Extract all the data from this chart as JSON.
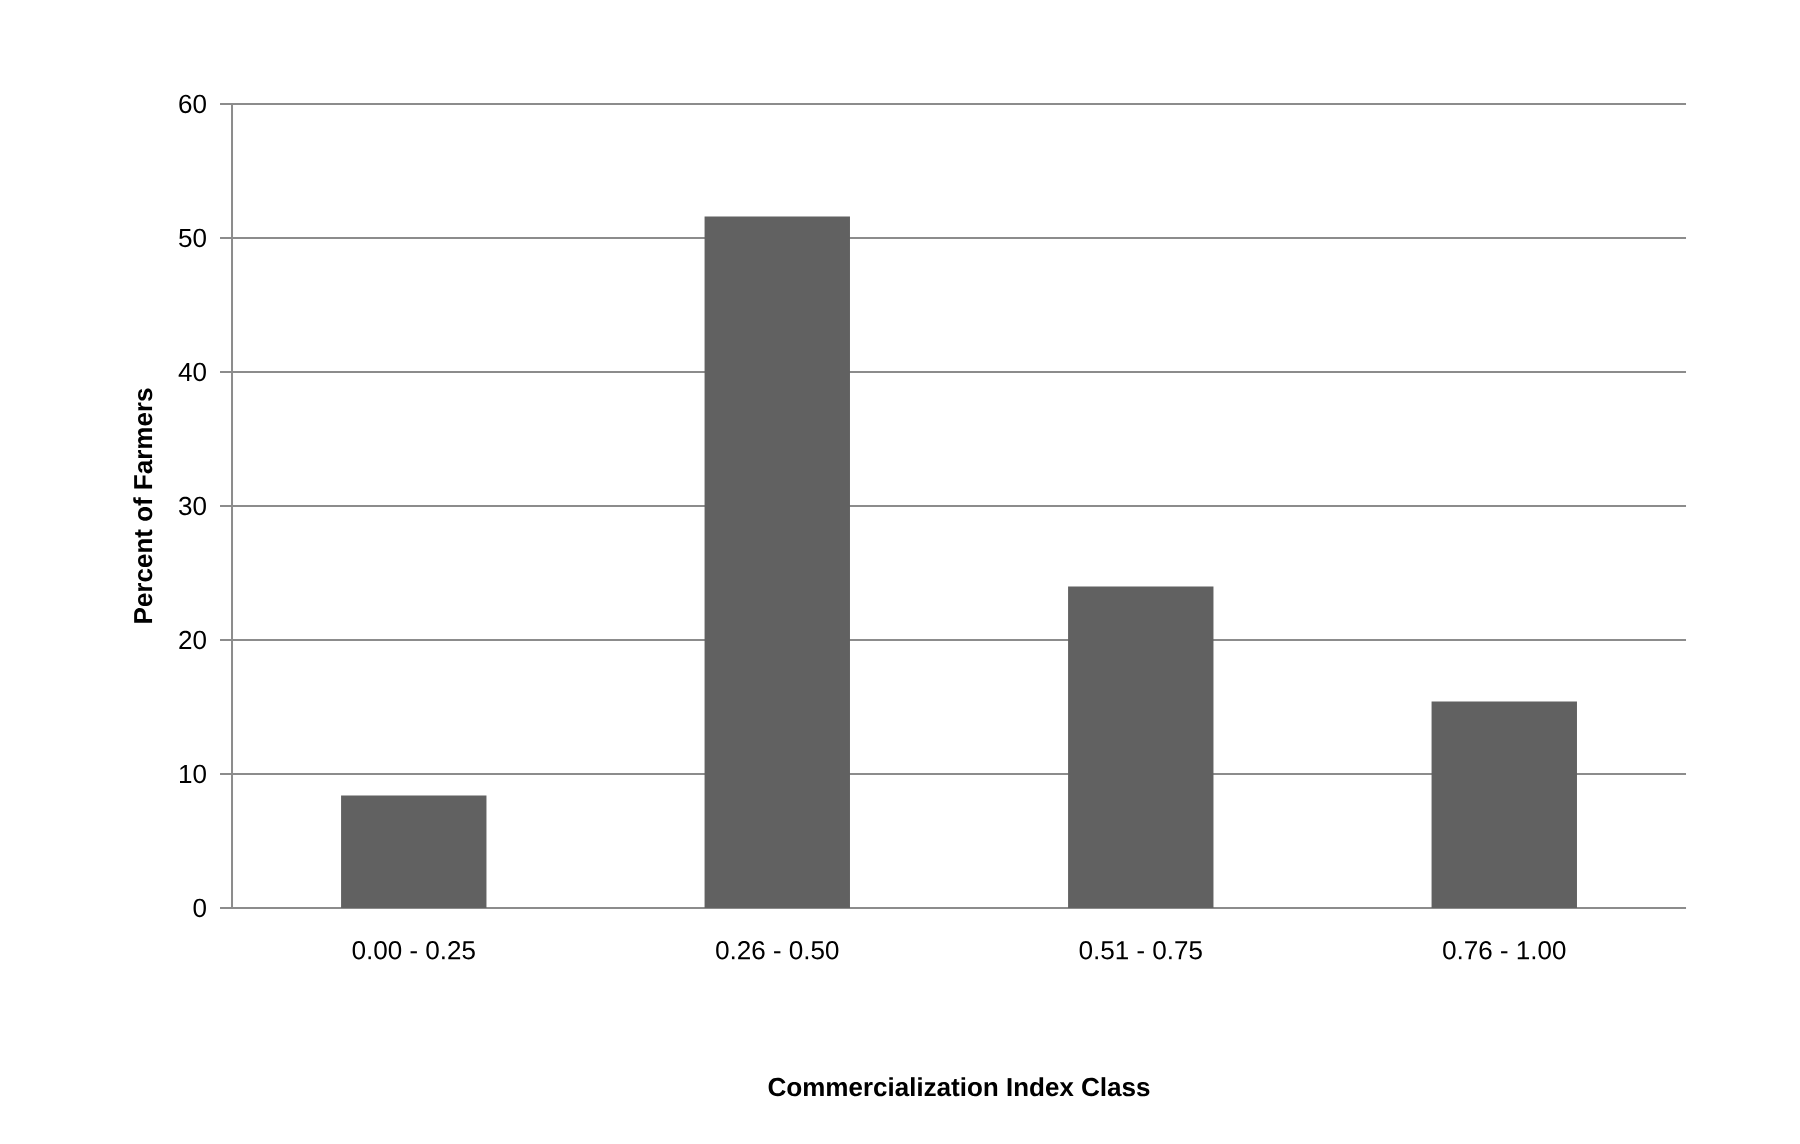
{
  "chart_data": {
    "type": "bar",
    "xlabel": "Commercialization Index Class",
    "ylabel": "Percent  of Farmers",
    "categories": [
      "0.00 - 0.25",
      "0.26 - 0.50",
      "0.51 - 0.75",
      "0.76 - 1.00"
    ],
    "values": [
      8.4,
      51.6,
      24.0,
      15.4
    ],
    "color": "#616161",
    "ylim": [
      0,
      60
    ],
    "yticks": [
      0,
      10,
      20,
      30,
      40,
      50,
      60
    ],
    "grid": "y"
  }
}
